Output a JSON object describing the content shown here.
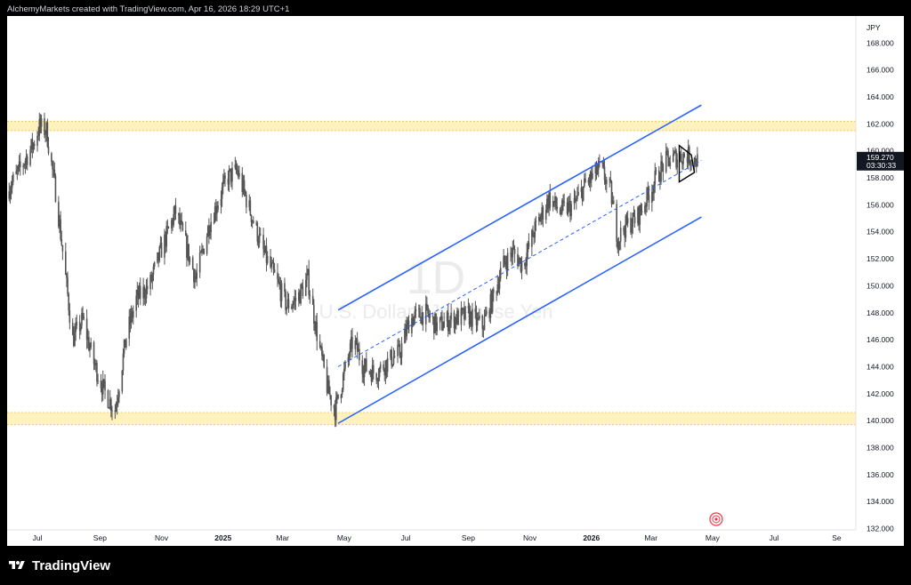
{
  "header": {
    "text": "AlchemyMarkets created with TradingView.com, Apr 16, 2026 18:29 UTC+1"
  },
  "footer": {
    "brand": "TradingView"
  },
  "watermark": {
    "interval": "1D",
    "pair_text": "U.S. Dollar / Japanese Yen"
  },
  "colors": {
    "channel": "#2962ff",
    "zone": "#fff2bf",
    "zone_line": "#f5c242",
    "candles": "#555555",
    "price_label": "#131722"
  },
  "chart_data": {
    "type": "line",
    "title": "",
    "currency_label": "JPY",
    "y_range": [
      131.9,
      170.0
    ],
    "y_ticks": [
      132,
      134,
      136,
      138,
      140,
      142,
      144,
      146,
      148,
      150,
      152,
      154,
      156,
      158,
      160,
      162,
      164,
      166,
      168
    ],
    "y_tick_labels": [
      "132.000",
      "134.000",
      "136.000",
      "138.000",
      "140.000",
      "142.000",
      "144.000",
      "146.000",
      "148.000",
      "150.000",
      "152.000",
      "154.000",
      "156.000",
      "158.000",
      "160.000",
      "162.000",
      "164.000",
      "166.000",
      "168.000"
    ],
    "x_range": [
      "2024-06-01",
      "2026-09-20"
    ],
    "x_ticks": [
      {
        "label": "Jul",
        "date": "2024-07-01",
        "bold": false
      },
      {
        "label": "Sep",
        "date": "2024-09-01",
        "bold": false
      },
      {
        "label": "Nov",
        "date": "2024-11-01",
        "bold": false
      },
      {
        "label": "2025",
        "date": "2025-01-01",
        "bold": true
      },
      {
        "label": "Mar",
        "date": "2025-03-01",
        "bold": false
      },
      {
        "label": "May",
        "date": "2025-05-01",
        "bold": false
      },
      {
        "label": "Jul",
        "date": "2025-07-01",
        "bold": false
      },
      {
        "label": "Sep",
        "date": "2025-09-01",
        "bold": false
      },
      {
        "label": "Nov",
        "date": "2025-11-01",
        "bold": false
      },
      {
        "label": "2026",
        "date": "2026-01-01",
        "bold": true
      },
      {
        "label": "Mar",
        "date": "2026-03-01",
        "bold": false
      },
      {
        "label": "May",
        "date": "2026-05-01",
        "bold": false
      },
      {
        "label": "Jul",
        "date": "2026-07-01",
        "bold": false
      },
      {
        "label": "Se",
        "date": "2026-09-01",
        "bold": false
      }
    ],
    "series": [
      {
        "kind": "daily-close",
        "x": [
          "2024-06-01",
          "2024-06-15",
          "2024-06-27",
          "2024-07-03",
          "2024-07-10",
          "2024-07-20",
          "2024-08-05",
          "2024-08-15",
          "2024-08-25",
          "2024-09-05",
          "2024-09-16",
          "2024-09-27",
          "2024-10-07",
          "2024-10-20",
          "2024-11-01",
          "2024-11-15",
          "2024-11-25",
          "2024-12-05",
          "2024-12-18",
          "2025-01-05",
          "2025-01-15",
          "2025-01-28",
          "2025-02-10",
          "2025-02-25",
          "2025-03-05",
          "2025-03-15",
          "2025-03-26",
          "2025-04-05",
          "2025-04-15",
          "2025-04-22",
          "2025-05-01",
          "2025-05-10",
          "2025-05-20",
          "2025-06-01",
          "2025-06-15",
          "2025-06-25",
          "2025-07-05",
          "2025-07-20",
          "2025-08-01",
          "2025-08-15",
          "2025-09-01",
          "2025-09-15",
          "2025-09-25",
          "2025-10-05",
          "2025-10-15",
          "2025-10-25",
          "2025-11-05",
          "2025-11-20",
          "2025-12-01",
          "2025-12-15",
          "2025-12-26",
          "2026-01-10",
          "2026-01-20",
          "2026-01-27",
          "2026-02-05",
          "2026-02-15",
          "2026-02-25",
          "2026-03-05",
          "2026-03-15",
          "2026-03-25",
          "2026-04-05",
          "2026-04-16"
        ],
        "y": [
          157.0,
          158.8,
          160.5,
          161.8,
          161.5,
          156.5,
          146.0,
          147.5,
          144.5,
          142.2,
          140.8,
          146.2,
          149.0,
          150.0,
          152.7,
          155.5,
          153.0,
          150.5,
          154.5,
          158.0,
          158.5,
          155.5,
          152.5,
          150.0,
          148.5,
          149.0,
          150.5,
          146.0,
          142.2,
          140.8,
          143.5,
          146.0,
          144.0,
          143.5,
          144.5,
          145.0,
          147.5,
          148.0,
          147.0,
          147.5,
          147.8,
          147.0,
          149.0,
          151.5,
          152.5,
          151.5,
          154.0,
          156.5,
          155.5,
          156.0,
          157.5,
          158.8,
          157.0,
          153.5,
          154.5,
          155.0,
          156.5,
          157.8,
          159.2,
          159.5,
          159.7,
          159.27
        ]
      }
    ],
    "annotations": {
      "resistance_zone": [
        161.5,
        162.2
      ],
      "support_zone": [
        139.7,
        140.6
      ],
      "channel_upper": {
        "x": [
          "2025-04-25",
          "2026-04-20"
        ],
        "y": [
          148.2,
          163.4
        ]
      },
      "channel_mid": {
        "x": [
          "2025-04-25",
          "2026-04-20"
        ],
        "y": [
          144.0,
          159.3
        ]
      },
      "channel_lower": {
        "x": [
          "2025-04-25",
          "2026-04-20"
        ],
        "y": [
          139.8,
          155.1
        ]
      },
      "triangle": {
        "x": [
          "2026-03-29",
          "2026-04-10",
          "2026-04-13",
          "2026-03-29"
        ],
        "y": [
          160.4,
          159.7,
          158.4,
          157.7
        ]
      },
      "last_price": 159.27,
      "last_price_label": "159.270",
      "countdown_label": "03:30:33"
    }
  }
}
